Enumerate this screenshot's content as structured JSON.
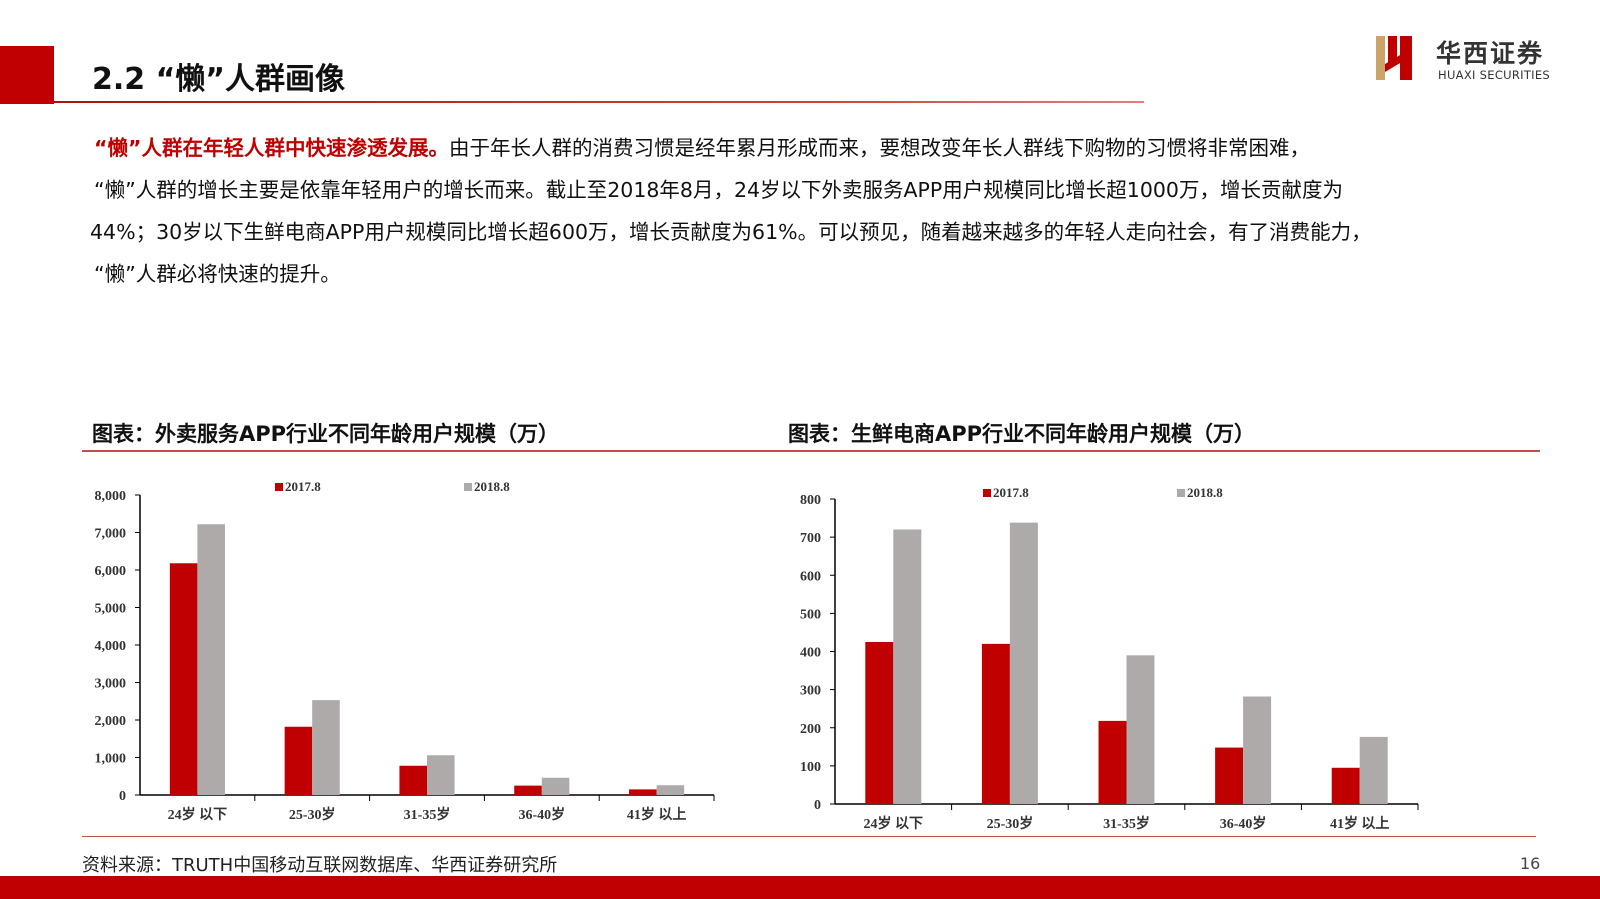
{
  "header": {
    "title": "2.2 “懒”人群画像"
  },
  "logo": {
    "cn": "华西证券",
    "en": "HUAXI SECURITIES"
  },
  "body": {
    "highlight": "“懒”人群在年轻人群中快速渗透发展。",
    "line1_rest": "由于年长人群的消费习惯是经年累月形成而来，要想改变年长人群线下购物的习惯将非常困难，",
    "line2": "“懒”人群的增长主要是依靠年轻用户的增长而来。截止至2018年8月，24岁以下外卖服务APP用户规模同比增长超1000万，增长贡献度为",
    "line3": "44%；30岁以下生鲜电商APP用户规模同比增长超600万，增长贡献度为61%。可以预见，随着越来越多的年轻人走向社会，有了消费能力，",
    "line4": "“懒”人群必将快速的提升。"
  },
  "chart_titles": [
    "图表：外卖服务APP行业不同年龄用户规模（万）",
    "图表：生鲜电商APP行业不同年龄用户规模（万）"
  ],
  "footer": {
    "source": "资料来源：TRUTH中国移动互联网数据库、华西证券研究所",
    "page": "16"
  },
  "colors": {
    "brand_red": "#c00000",
    "series_2017": "#c00000",
    "series_2018": "#aeaaaa"
  },
  "chart_data": [
    {
      "type": "bar",
      "categories": [
        "24岁 以下",
        "25-30岁",
        "31-35岁",
        "36-40岁",
        "41岁 以上"
      ],
      "series": [
        {
          "name": "2017.8",
          "values": [
            6180,
            1820,
            780,
            250,
            150
          ]
        },
        {
          "name": "2018.8",
          "values": [
            7220,
            2530,
            1060,
            460,
            260
          ]
        }
      ],
      "ylim": [
        0,
        8000
      ],
      "yticks": [
        "0",
        "1,000",
        "2,000",
        "3,000",
        "4,000",
        "5,000",
        "6,000",
        "7,000",
        "8,000"
      ],
      "legend": "top",
      "grid": false
    },
    {
      "type": "bar",
      "categories": [
        "24岁 以下",
        "25-30岁",
        "31-35岁",
        "36-40岁",
        "41岁 以上"
      ],
      "series": [
        {
          "name": "2017.8",
          "values": [
            425,
            420,
            218,
            148,
            95
          ]
        },
        {
          "name": "2018.8",
          "values": [
            720,
            738,
            390,
            282,
            176
          ]
        }
      ],
      "ylim": [
        0,
        800
      ],
      "yticks": [
        "0",
        "100",
        "200",
        "300",
        "400",
        "500",
        "600",
        "700",
        "800"
      ],
      "legend": "top",
      "grid": false
    }
  ]
}
